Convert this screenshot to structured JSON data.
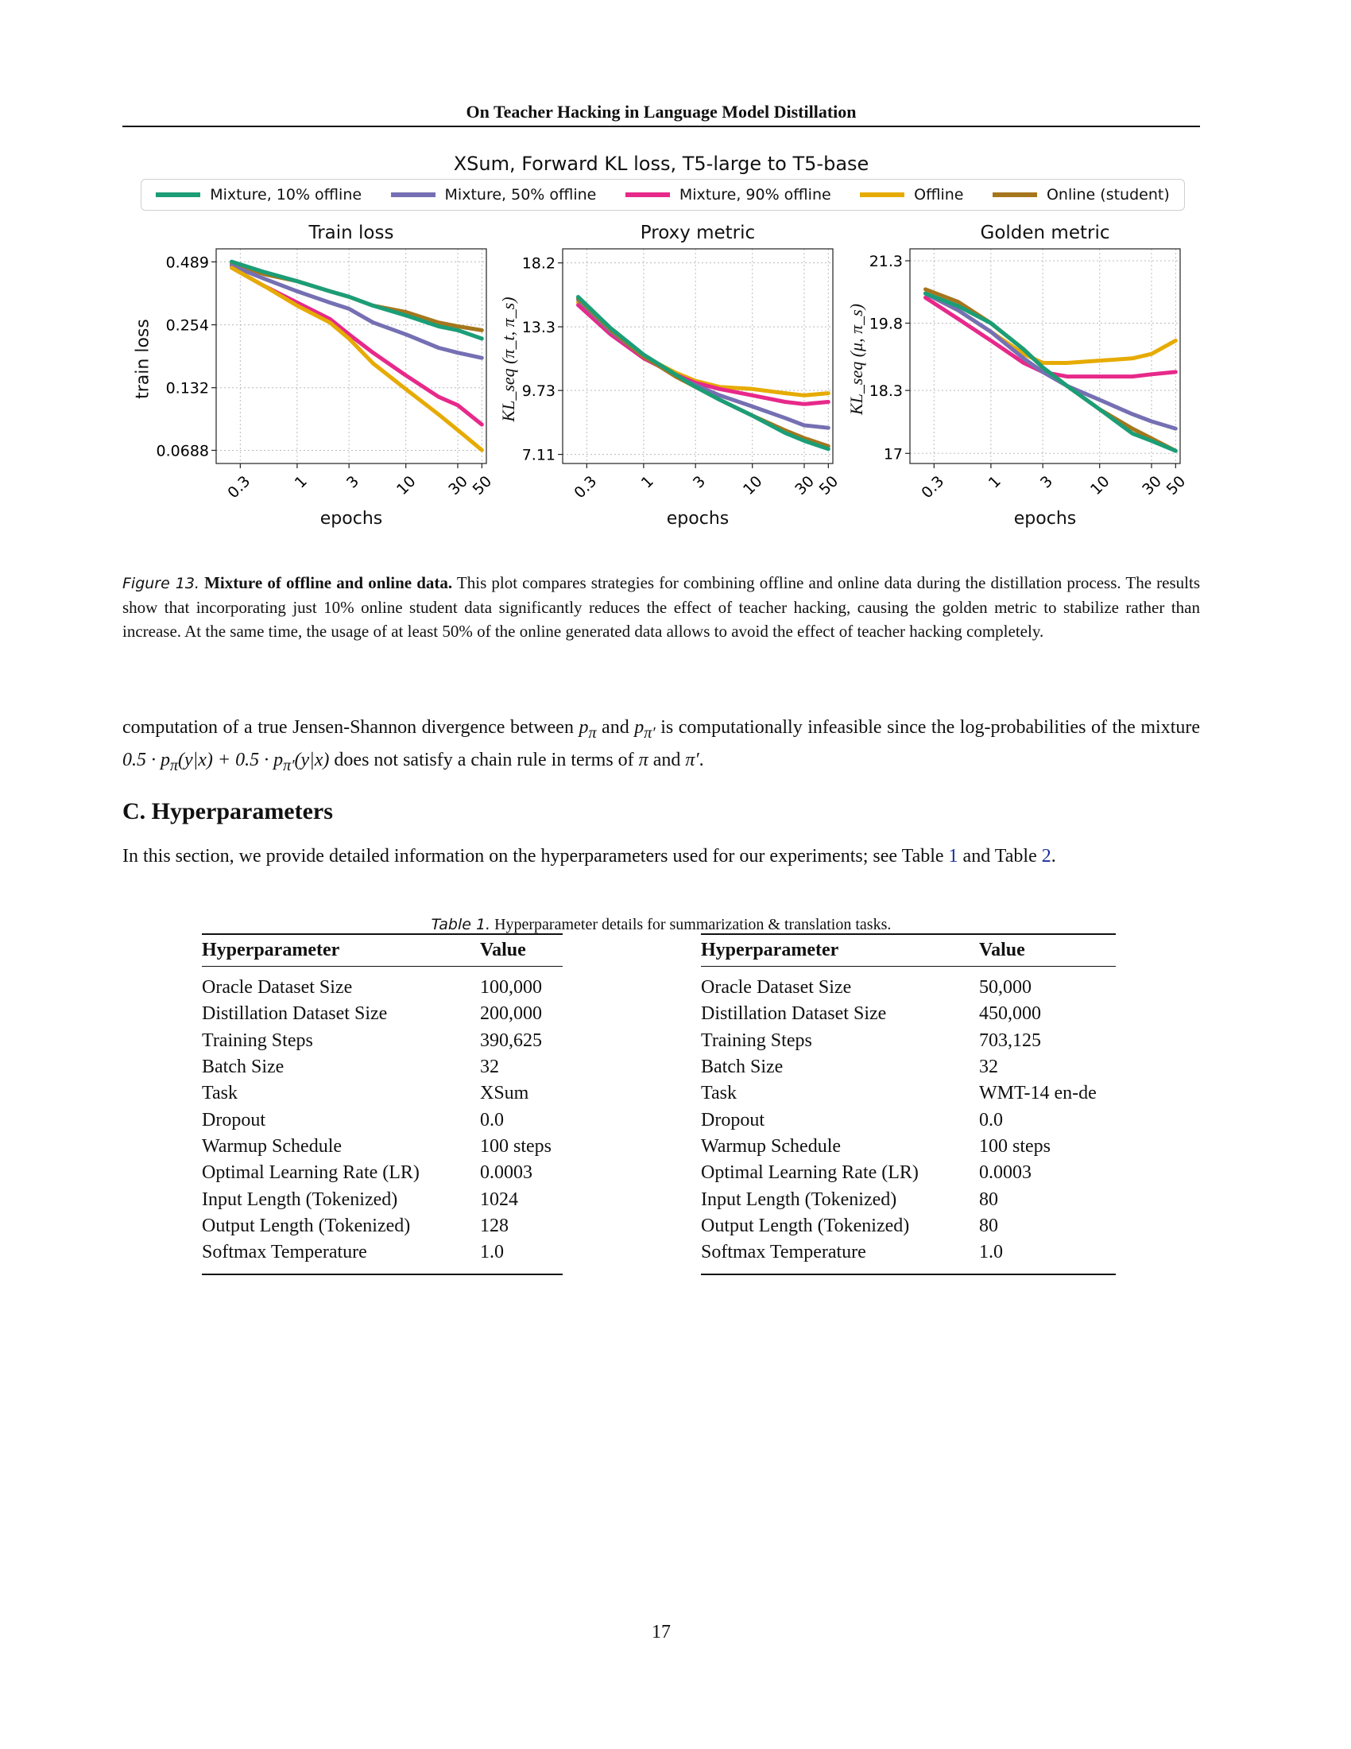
{
  "running_head": "On Teacher Hacking in Language Model Distillation",
  "figure": {
    "title": "XSum, Forward KL loss, T5-large to T5-base",
    "legend": [
      {
        "label": "Mixture, 10% offline",
        "color": "#1b9e77"
      },
      {
        "label": "Mixture, 50% offline",
        "color": "#7570b3"
      },
      {
        "label": "Mixture, 90% offline",
        "color": "#e7298a"
      },
      {
        "label": "Offline",
        "color": "#e6ab02"
      },
      {
        "label": "Online (student)",
        "color": "#a6761d"
      }
    ],
    "caption_label": "Figure 13.",
    "caption_bold": "Mixture of offline and online data.",
    "caption_text": "This plot compares strategies for combining offline and online data during the distillation process. The results show that incorporating just 10% online student data significantly reduces the effect of teacher hacking, causing the golden metric to stabilize rather than increase. At the same time, the usage of at least 50% of the online generated data allows to avoid the effect of teacher hacking completely."
  },
  "chart_data": [
    {
      "type": "line",
      "title": "Train loss",
      "xlabel": "epochs",
      "ylabel": "train loss",
      "x_scale": "log",
      "y_scale": "log",
      "xticks": [
        "0.3",
        "1",
        "3",
        "10",
        "30",
        "50"
      ],
      "xtick_values": [
        0.3,
        1,
        3,
        10,
        30,
        50
      ],
      "yticks": [
        "0.489",
        "0.254",
        "0.132",
        "0.0688"
      ],
      "ytick_values": [
        0.489,
        0.254,
        0.132,
        0.0688
      ],
      "xlim": [
        0.18,
        55
      ],
      "ylim": [
        0.06,
        0.56
      ],
      "grid": true,
      "x": [
        0.25,
        0.5,
        1,
        2,
        3,
        5,
        10,
        20,
        30,
        50
      ],
      "series": [
        {
          "name": "Online (student)",
          "color": "#a6761d",
          "values": [
            0.48,
            0.43,
            0.4,
            0.36,
            0.34,
            0.31,
            0.29,
            0.26,
            0.25,
            0.24
          ]
        },
        {
          "name": "Mixture, 10% offline",
          "color": "#1b9e77",
          "values": [
            0.49,
            0.44,
            0.4,
            0.36,
            0.34,
            0.31,
            0.28,
            0.25,
            0.24,
            0.22
          ]
        },
        {
          "name": "Mixture, 50% offline",
          "color": "#7570b3",
          "values": [
            0.47,
            0.41,
            0.36,
            0.32,
            0.3,
            0.26,
            0.23,
            0.2,
            0.19,
            0.18
          ]
        },
        {
          "name": "Mixture, 90% offline",
          "color": "#e7298a",
          "values": [
            0.46,
            0.38,
            0.32,
            0.27,
            0.23,
            0.19,
            0.15,
            0.12,
            0.11,
            0.09
          ]
        },
        {
          "name": "Offline",
          "color": "#e6ab02",
          "values": [
            0.46,
            0.38,
            0.31,
            0.26,
            0.22,
            0.17,
            0.13,
            0.1,
            0.085,
            0.069
          ]
        }
      ]
    },
    {
      "type": "line",
      "title": "Proxy metric",
      "xlabel": "epochs",
      "ylabel": "KL_seq (π_t, π_s)",
      "x_scale": "log",
      "y_scale": "log",
      "xticks": [
        "0.3",
        "1",
        "3",
        "10",
        "30",
        "50"
      ],
      "xtick_values": [
        0.3,
        1,
        3,
        10,
        30,
        50
      ],
      "yticks": [
        "18.2",
        "13.3",
        "9.73",
        "7.11"
      ],
      "ytick_values": [
        18.2,
        13.3,
        9.73,
        7.11
      ],
      "xlim": [
        0.18,
        55
      ],
      "ylim": [
        6.8,
        19.5
      ],
      "grid": true,
      "x": [
        0.25,
        0.5,
        1,
        2,
        3,
        5,
        10,
        20,
        30,
        50
      ],
      "series": [
        {
          "name": "Offline",
          "color": "#e6ab02",
          "values": [
            15.0,
            13.0,
            11.5,
            10.6,
            10.2,
            9.9,
            9.8,
            9.6,
            9.5,
            9.6
          ]
        },
        {
          "name": "Mixture, 90% offline",
          "color": "#e7298a",
          "values": [
            14.8,
            12.8,
            11.4,
            10.5,
            10.1,
            9.8,
            9.5,
            9.2,
            9.1,
            9.2
          ]
        },
        {
          "name": "Mixture, 50% offline",
          "color": "#7570b3",
          "values": [
            15.2,
            13.0,
            11.5,
            10.4,
            10.0,
            9.5,
            9.0,
            8.5,
            8.2,
            8.1
          ]
        },
        {
          "name": "Online (student)",
          "color": "#a6761d",
          "values": [
            15.3,
            13.1,
            11.5,
            10.4,
            9.9,
            9.3,
            8.6,
            8.0,
            7.7,
            7.4
          ]
        },
        {
          "name": "Mixture, 10% offline",
          "color": "#1b9e77",
          "values": [
            15.4,
            13.2,
            11.6,
            10.5,
            9.9,
            9.3,
            8.6,
            7.9,
            7.6,
            7.3
          ]
        }
      ]
    },
    {
      "type": "line",
      "title": "Golden metric",
      "xlabel": "epochs",
      "ylabel": "KL_seq (μ, π_s)",
      "x_scale": "log",
      "y_scale": "log",
      "xticks": [
        "0.3",
        "1",
        "3",
        "10",
        "30",
        "50"
      ],
      "xtick_values": [
        0.3,
        1,
        3,
        10,
        30,
        50
      ],
      "yticks": [
        "21.3",
        "19.8",
        "18.3",
        "17"
      ],
      "ytick_values": [
        21.3,
        19.8,
        18.3,
        17
      ],
      "xlim": [
        0.18,
        55
      ],
      "ylim": [
        16.8,
        21.6
      ],
      "grid": true,
      "x": [
        0.25,
        0.5,
        1,
        2,
        3,
        5,
        10,
        20,
        30,
        50
      ],
      "series": [
        {
          "name": "Offline",
          "color": "#e6ab02",
          "values": [
            20.5,
            20.1,
            19.6,
            19.1,
            18.9,
            18.9,
            18.95,
            19.0,
            19.1,
            19.4
          ]
        },
        {
          "name": "Mixture, 90% offline",
          "color": "#e7298a",
          "values": [
            20.4,
            19.9,
            19.4,
            18.9,
            18.7,
            18.6,
            18.6,
            18.6,
            18.65,
            18.7
          ]
        },
        {
          "name": "Mixture, 50% offline",
          "color": "#7570b3",
          "values": [
            20.5,
            20.1,
            19.6,
            19.0,
            18.7,
            18.4,
            18.1,
            17.8,
            17.65,
            17.5
          ]
        },
        {
          "name": "Online (student)",
          "color": "#a6761d",
          "values": [
            20.6,
            20.3,
            19.8,
            19.2,
            18.8,
            18.4,
            17.9,
            17.5,
            17.3,
            17.05
          ]
        },
        {
          "name": "Mixture, 10% offline",
          "color": "#1b9e77",
          "values": [
            20.5,
            20.2,
            19.8,
            19.2,
            18.8,
            18.4,
            17.9,
            17.4,
            17.25,
            17.05
          ]
        }
      ]
    }
  ],
  "body": {
    "para1_a": "computation of a true Jensen-Shannon divergence between ",
    "para1_b": " and ",
    "para1_c": " is computationally infeasible since the log-probabilities of the mixture ",
    "para1_d": " does not satisfy a chain rule in terms of ",
    "para1_e": " and ",
    "para1_f": ".",
    "math_p_pi": "p",
    "math_sub_pi": "π",
    "math_sub_pi_prime": "π′",
    "math_mixture": "0.5 · p",
    "math_mixture_tail1": "(y|x) + 0.5 · p",
    "math_mixture_tail2": "(y|x)",
    "math_pi": "π",
    "math_pi_prime": "π′",
    "section_heading": "C. Hyperparameters",
    "para2_a": "In this section, we provide detailed information on the hyperparameters used for our experiments; see Table ",
    "para2_link1": "1",
    "para2_b": " and Table ",
    "para2_link2": "2",
    "para2_c": "."
  },
  "table": {
    "caption_label": "Table 1.",
    "caption_text": "Hyperparameter details for summarization & translation tasks.",
    "headers": [
      "Hyperparameter",
      "Value"
    ],
    "left_rows": [
      [
        "Oracle Dataset Size",
        "100,000"
      ],
      [
        "Distillation Dataset Size",
        "200,000"
      ],
      [
        "Training Steps",
        "390,625"
      ],
      [
        "Batch Size",
        "32"
      ],
      [
        "Task",
        "XSum"
      ],
      [
        "Dropout",
        "0.0"
      ],
      [
        "Warmup Schedule",
        "100 steps"
      ],
      [
        "Optimal Learning Rate (LR)",
        "0.0003"
      ],
      [
        "Input Length (Tokenized)",
        "1024"
      ],
      [
        "Output Length (Tokenized)",
        "128"
      ],
      [
        "Softmax Temperature",
        "1.0"
      ]
    ],
    "right_rows": [
      [
        "Oracle Dataset Size",
        "50,000"
      ],
      [
        "Distillation Dataset Size",
        "450,000"
      ],
      [
        "Training Steps",
        "703,125"
      ],
      [
        "Batch Size",
        "32"
      ],
      [
        "Task",
        "WMT-14 en-de"
      ],
      [
        "Dropout",
        "0.0"
      ],
      [
        "Warmup Schedule",
        "100 steps"
      ],
      [
        "Optimal Learning Rate (LR)",
        "0.0003"
      ],
      [
        "Input Length (Tokenized)",
        "80"
      ],
      [
        "Output Length (Tokenized)",
        "80"
      ],
      [
        "Softmax Temperature",
        "1.0"
      ]
    ]
  },
  "page_number": "17"
}
